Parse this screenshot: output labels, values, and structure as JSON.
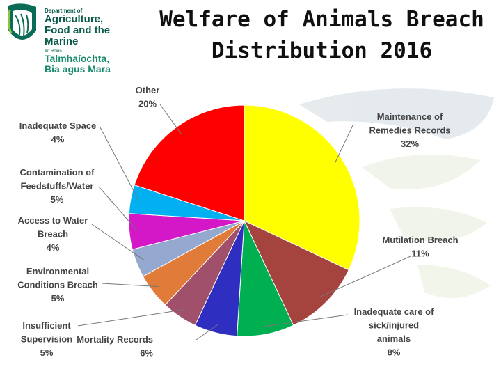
{
  "logo": {
    "line1": "Department of",
    "line2": "Agriculture,",
    "line3": "Food and the Marine",
    "line4": "An Roinn",
    "line5": "Talmhaíochta,",
    "line6": "Bia agus Mara"
  },
  "chart_data": {
    "type": "pie",
    "title_lines": [
      "Welfare of Animals Breach",
      "Distribution 2016"
    ],
    "unit": "%",
    "slices": [
      {
        "label": [
          "Maintenance of",
          "Remedies Records"
        ],
        "value": 32,
        "display": "32%",
        "color": "#ffff00"
      },
      {
        "label": [
          "Mutilation Breach"
        ],
        "value": 11,
        "display": "11%",
        "color": "#a5443f"
      },
      {
        "label": [
          "Inadequate care of",
          "sick/injured",
          "animals"
        ],
        "value": 8,
        "display": "8%",
        "color": "#00b050"
      },
      {
        "label": [
          "Mortality Records"
        ],
        "value": 6,
        "display": "6%",
        "color": "#2e2ec0"
      },
      {
        "label": [
          "Insufficient",
          "Supervision"
        ],
        "value": 5,
        "display": "5%",
        "color": "#a0506b"
      },
      {
        "label": [
          "Environmental",
          "Conditions Breach"
        ],
        "value": 5,
        "display": "5%",
        "color": "#e07b39"
      },
      {
        "label": [
          "Access to Water",
          "Breach"
        ],
        "value": 4,
        "display": "4%",
        "color": "#94a8d0"
      },
      {
        "label": [
          "Contamination of",
          "Feedstuffs/Water"
        ],
        "value": 5,
        "display": "5%",
        "color": "#d417c7"
      },
      {
        "label": [
          "Inadequate Space"
        ],
        "value": 4,
        "display": "4%",
        "color": "#00b0f0"
      },
      {
        "label": [
          "Other"
        ],
        "value": 20,
        "display": "20%",
        "color": "#ff0000"
      }
    ]
  }
}
